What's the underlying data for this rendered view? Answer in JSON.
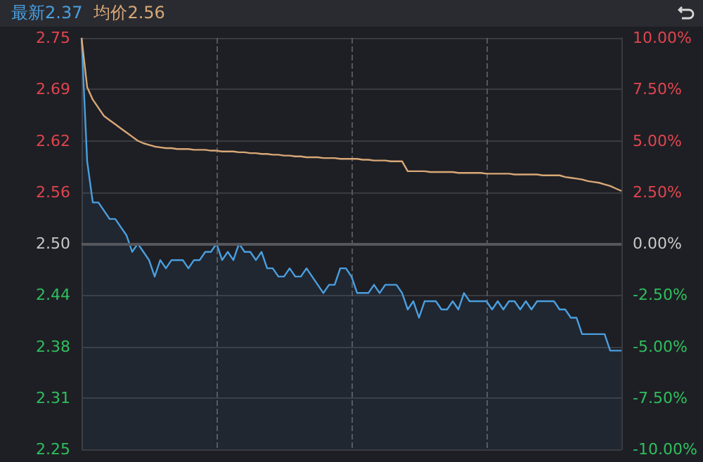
{
  "chart_data": {
    "type": "line",
    "annotations": [
      "最新2.37",
      "均价2.56"
    ],
    "categories": [
      null,
      null,
      null,
      null,
      null,
      null,
      null,
      null,
      null,
      null,
      null,
      null,
      null,
      null,
      null,
      null,
      null,
      null,
      null,
      null,
      null,
      null,
      null,
      null,
      null,
      null,
      null,
      null,
      null,
      null,
      null,
      null,
      null,
      null,
      null,
      null,
      null,
      null,
      null,
      null,
      null,
      null,
      null,
      null,
      null,
      null,
      null,
      null,
      null,
      null,
      null,
      null,
      null,
      null,
      null,
      null,
      null,
      null,
      null,
      null,
      null,
      null,
      null,
      null,
      null,
      null,
      null,
      null,
      null,
      null,
      null,
      null,
      null,
      null,
      null,
      null,
      null,
      null,
      null,
      null,
      null,
      null,
      null,
      null,
      null,
      null,
      null,
      null,
      null,
      null,
      null,
      null,
      null,
      null,
      null,
      null,
      null
    ],
    "series": [
      {
        "type": "area",
        "color": "#4a9fe0",
        "values": [
          2.75,
          2.6,
          2.55,
          2.55,
          2.54,
          2.53,
          2.53,
          2.52,
          2.51,
          2.49,
          2.5,
          2.49,
          2.48,
          2.46,
          2.48,
          2.47,
          2.48,
          2.48,
          2.48,
          2.47,
          2.48,
          2.48,
          2.49,
          2.49,
          2.5,
          2.48,
          2.49,
          2.48,
          2.5,
          2.49,
          2.49,
          2.48,
          2.49,
          2.47,
          2.47,
          2.46,
          2.46,
          2.47,
          2.46,
          2.46,
          2.47,
          2.46,
          2.45,
          2.44,
          2.45,
          2.45,
          2.47,
          2.47,
          2.46,
          2.44,
          2.44,
          2.44,
          2.45,
          2.44,
          2.45,
          2.45,
          2.45,
          2.44,
          2.42,
          2.43,
          2.41,
          2.43,
          2.43,
          2.43,
          2.42,
          2.42,
          2.43,
          2.42,
          2.44,
          2.43,
          2.43,
          2.43,
          2.43,
          2.42,
          2.43,
          2.42,
          2.43,
          2.43,
          2.42,
          2.43,
          2.42,
          2.43,
          2.43,
          2.43,
          2.43,
          2.42,
          2.42,
          2.41,
          2.41,
          2.39,
          2.39,
          2.39,
          2.39,
          2.39,
          2.37,
          2.37,
          2.37
        ]
      },
      {
        "color": "#d9a877",
        "values": [
          2.75,
          2.69,
          2.675,
          2.665,
          2.655,
          2.65,
          2.645,
          2.64,
          2.635,
          2.63,
          2.625,
          2.622,
          2.62,
          2.618,
          2.617,
          2.616,
          2.616,
          2.615,
          2.615,
          2.615,
          2.614,
          2.614,
          2.614,
          2.613,
          2.613,
          2.612,
          2.612,
          2.612,
          2.611,
          2.611,
          2.61,
          2.61,
          2.609,
          2.609,
          2.608,
          2.608,
          2.607,
          2.607,
          2.606,
          2.606,
          2.605,
          2.605,
          2.605,
          2.604,
          2.604,
          2.604,
          2.603,
          2.603,
          2.603,
          2.603,
          2.602,
          2.602,
          2.601,
          2.601,
          2.601,
          2.6,
          2.6,
          2.6,
          2.588,
          2.588,
          2.588,
          2.588,
          2.587,
          2.587,
          2.587,
          2.587,
          2.587,
          2.586,
          2.586,
          2.586,
          2.586,
          2.586,
          2.585,
          2.585,
          2.585,
          2.585,
          2.585,
          2.584,
          2.584,
          2.584,
          2.584,
          2.584,
          2.583,
          2.583,
          2.583,
          2.583,
          2.581,
          2.58,
          2.579,
          2.578,
          2.576,
          2.575,
          2.574,
          2.572,
          2.57,
          2.567,
          2.564
        ]
      }
    ],
    "ylim": [
      2.25,
      2.75
    ],
    "yticks": [
      2.75,
      {
        "value": 2.6875,
        "label": "2.69"
      },
      {
        "value": 2.625,
        "label": "2.62"
      },
      {
        "value": 2.5625,
        "label": "2.56"
      },
      {
        "value": 2.5,
        "label": "2.50"
      },
      {
        "value": 2.4375,
        "label": "2.44"
      },
      {
        "value": 2.375,
        "label": "2.38"
      },
      {
        "value": 2.3125,
        "label": "2.31"
      },
      2.25
    ],
    "y2lim": [
      -10,
      10
    ],
    "y2ticks": [
      {
        "value": 10,
        "label": "10.00%"
      },
      {
        "value": 7.5,
        "label": "7.50%"
      },
      {
        "value": 5,
        "label": "5.00%"
      },
      {
        "value": 2.5,
        "label": "2.50%"
      },
      {
        "value": 0,
        "label": "0.00%"
      },
      {
        "value": -2.5,
        "label": "-2.50%"
      },
      {
        "value": -5,
        "label": "-5.00%"
      },
      {
        "value": -7.5,
        "label": "-7.50%"
      },
      {
        "value": -10,
        "label": "-10.00%"
      }
    ],
    "ref_lines": [
      {
        "axis": "y",
        "value": 2.5,
        "color": "#55575c"
      }
    ],
    "grid": true
  }
}
